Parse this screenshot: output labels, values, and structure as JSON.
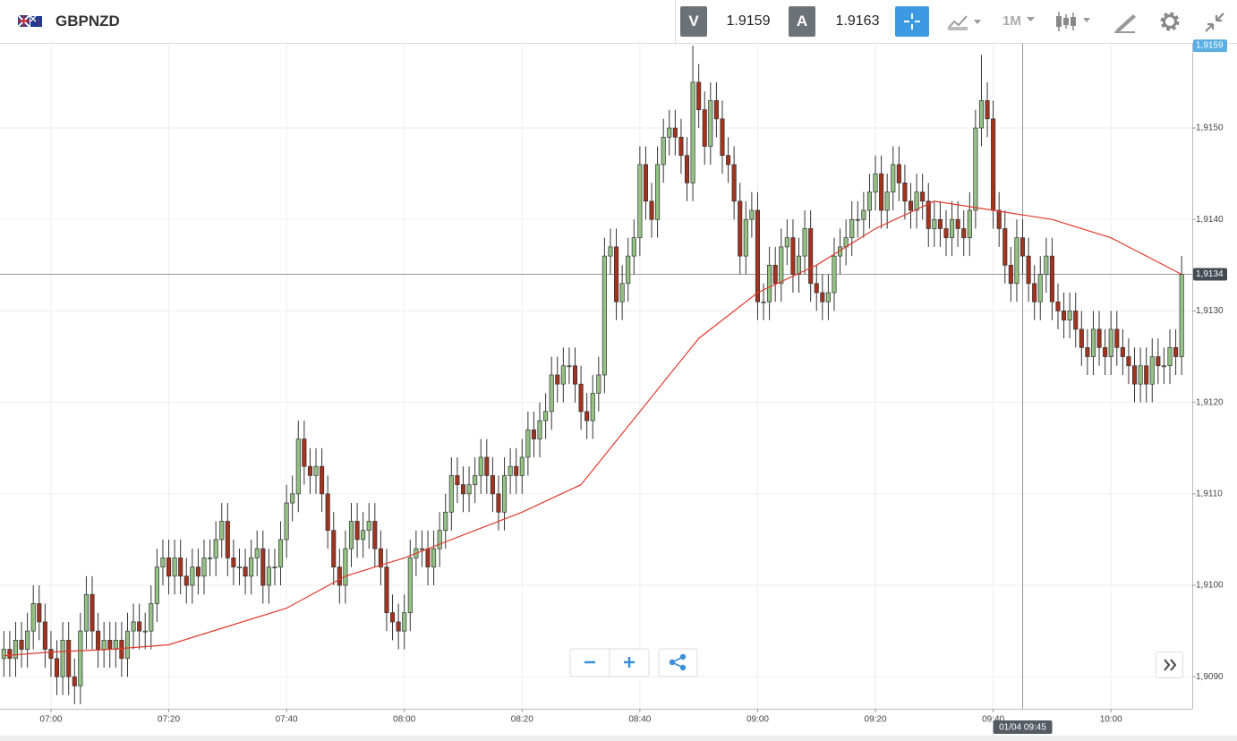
{
  "header": {
    "pair": "GBPNZD",
    "sell": {
      "label": "V",
      "price": "1.9159"
    },
    "buy": {
      "label": "A",
      "price": "1.9163"
    },
    "interval": "1M"
  },
  "chart_data": {
    "type": "candlestick",
    "x": [
      412,
      413,
      414,
      415,
      416,
      417,
      418,
      419,
      420,
      421,
      422,
      423,
      424,
      425,
      426,
      427,
      428,
      429,
      430,
      431,
      432,
      433,
      434,
      435,
      436,
      437,
      438,
      439,
      440,
      441,
      442,
      443,
      444,
      445,
      446,
      447,
      448,
      449,
      450,
      451,
      452,
      453,
      454,
      455,
      456,
      457,
      458,
      459,
      460,
      461,
      462,
      463,
      464,
      465,
      466,
      467,
      468,
      469,
      470,
      471,
      472,
      473,
      474,
      475,
      476,
      477,
      478,
      479,
      480,
      481,
      482,
      483,
      484,
      485,
      486,
      487,
      488,
      489,
      490,
      491,
      492,
      493,
      494,
      495,
      496,
      497,
      498,
      499,
      500,
      501,
      502,
      503,
      504,
      505,
      506,
      507,
      508,
      509,
      510,
      511,
      512,
      513,
      514,
      515,
      516,
      517,
      518,
      519,
      520,
      521,
      522,
      523,
      524,
      525,
      526,
      527,
      528,
      529,
      530,
      531,
      532,
      533,
      534,
      535,
      536,
      537,
      538,
      539,
      540,
      541,
      542,
      543,
      544,
      545,
      546,
      547,
      548,
      549,
      550,
      551,
      552,
      553,
      554,
      555,
      556,
      557,
      558,
      559,
      560,
      561,
      562,
      563,
      564,
      565,
      566,
      567,
      568,
      569,
      570,
      571,
      572,
      573,
      574,
      575,
      576,
      577,
      578,
      579,
      580,
      581,
      582,
      583,
      584,
      585,
      586,
      587,
      588,
      589,
      590,
      591,
      592,
      593,
      594,
      595,
      596,
      597,
      598,
      599,
      600,
      601,
      602,
      603,
      604,
      605,
      606,
      607,
      608,
      609,
      610,
      611,
      612
    ],
    "open": [
      1.9092,
      1.9093,
      1.9092,
      1.9094,
      1.9093,
      1.9095,
      1.9098,
      1.9096,
      1.9093,
      1.9092,
      1.909,
      1.9094,
      1.909,
      1.9089,
      1.9095,
      1.9099,
      1.9095,
      1.9093,
      1.9094,
      1.9093,
      1.9094,
      1.9092,
      1.9095,
      1.9096,
      1.9095,
      1.9095,
      1.9098,
      1.9102,
      1.9103,
      1.9101,
      1.9103,
      1.9101,
      1.91,
      1.9102,
      1.9101,
      1.9103,
      1.9103,
      1.9105,
      1.9107,
      1.9103,
      1.9102,
      1.9102,
      1.9101,
      1.9103,
      1.9104,
      1.91,
      1.9102,
      1.9102,
      1.9105,
      1.9109,
      1.911,
      1.9116,
      1.9113,
      1.9112,
      1.9113,
      1.911,
      1.9106,
      1.9102,
      1.91,
      1.9104,
      1.9107,
      1.9105,
      1.9106,
      1.9107,
      1.9104,
      1.9102,
      1.9097,
      1.9096,
      1.9095,
      1.9097,
      1.9103,
      1.9104,
      1.9104,
      1.9102,
      1.9104,
      1.9106,
      1.9108,
      1.9112,
      1.9111,
      1.911,
      1.9111,
      1.9112,
      1.9114,
      1.9112,
      1.911,
      1.9108,
      1.9112,
      1.9113,
      1.9112,
      1.9114,
      1.9117,
      1.9116,
      1.9118,
      1.9119,
      1.9123,
      1.9122,
      1.9124,
      1.9124,
      1.9122,
      1.9119,
      1.9118,
      1.9121,
      1.9123,
      1.9136,
      1.9137,
      1.9131,
      1.9133,
      1.9136,
      1.9138,
      1.9146,
      1.9142,
      1.914,
      1.9146,
      1.9149,
      1.915,
      1.9149,
      1.9147,
      1.9144,
      1.9155,
      1.9152,
      1.9148,
      1.9153,
      1.9151,
      1.9147,
      1.9146,
      1.9142,
      1.9136,
      1.914,
      1.9141,
      1.9131,
      1.9131,
      1.9135,
      1.9133,
      1.9137,
      1.9138,
      1.9134,
      1.9136,
      1.9139,
      1.9133,
      1.9132,
      1.9131,
      1.9132,
      1.9136,
      1.9137,
      1.9138,
      1.914,
      1.914,
      1.9141,
      1.9143,
      1.9145,
      1.9141,
      1.9143,
      1.9146,
      1.9144,
      1.9142,
      1.9141,
      1.9143,
      1.9142,
      1.9139,
      1.914,
      1.9139,
      1.9138,
      1.914,
      1.9139,
      1.9138,
      1.9141,
      1.915,
      1.9153,
      1.9151,
      1.9141,
      1.9139,
      1.9135,
      1.9133,
      1.9138,
      1.9136,
      1.9133,
      1.9131,
      1.9134,
      1.9136,
      1.9131,
      1.913,
      1.9129,
      1.913,
      1.9128,
      1.9126,
      1.9125,
      1.9128,
      1.9126,
      1.9125,
      1.9128,
      1.9126,
      1.9125,
      1.9124,
      1.9122,
      1.9124,
      1.9122,
      1.9125,
      1.9124,
      1.9124,
      1.9126,
      1.9125
    ],
    "high": [
      1.9095,
      1.9095,
      1.9096,
      1.9096,
      1.9097,
      1.91,
      1.91,
      1.9098,
      1.9095,
      1.9094,
      1.9096,
      1.9096,
      1.9092,
      1.9097,
      1.9101,
      1.9101,
      1.9097,
      1.9096,
      1.9096,
      1.9096,
      1.9096,
      1.9097,
      1.9098,
      1.9098,
      1.9097,
      1.91,
      1.9104,
      1.9105,
      1.9105,
      1.9105,
      1.9105,
      1.9103,
      1.9104,
      1.9104,
      1.9105,
      1.9105,
      1.9107,
      1.9109,
      1.9109,
      1.9105,
      1.9104,
      1.9104,
      1.9105,
      1.9106,
      1.9106,
      1.9104,
      1.9104,
      1.9107,
      1.9111,
      1.9112,
      1.9118,
      1.9118,
      1.9115,
      1.9115,
      1.9115,
      1.9112,
      1.9108,
      1.9104,
      1.9106,
      1.9109,
      1.9109,
      1.9108,
      1.9109,
      1.9109,
      1.9106,
      1.9104,
      1.9099,
      1.9098,
      1.9099,
      1.9105,
      1.9106,
      1.9106,
      1.9106,
      1.9106,
      1.9108,
      1.911,
      1.9114,
      1.9114,
      1.9113,
      1.9113,
      1.9114,
      1.9116,
      1.9116,
      1.9114,
      1.9112,
      1.9114,
      1.9115,
      1.9115,
      1.9116,
      1.9119,
      1.9119,
      1.912,
      1.9121,
      1.9125,
      1.9125,
      1.9126,
      1.9126,
      1.9126,
      1.9124,
      1.9121,
      1.9123,
      1.9125,
      1.9138,
      1.9139,
      1.9139,
      1.9135,
      1.9138,
      1.914,
      1.9148,
      1.9148,
      1.9144,
      1.9148,
      1.9151,
      1.9152,
      1.9152,
      1.9151,
      1.9149,
      1.9159,
      1.9157,
      1.9154,
      1.9155,
      1.9155,
      1.9153,
      1.9149,
      1.9148,
      1.9144,
      1.9142,
      1.9143,
      1.9143,
      1.9133,
      1.9137,
      1.9137,
      1.9139,
      1.914,
      1.914,
      1.9138,
      1.9141,
      1.9141,
      1.9135,
      1.9134,
      1.9134,
      1.9138,
      1.9139,
      1.914,
      1.9142,
      1.9142,
      1.9143,
      1.9145,
      1.9147,
      1.9147,
      1.9145,
      1.9148,
      1.9148,
      1.9146,
      1.9144,
      1.9145,
      1.9145,
      1.9144,
      1.9142,
      1.9142,
      1.9141,
      1.9142,
      1.9142,
      1.9141,
      1.9143,
      1.9152,
      1.9158,
      1.9155,
      1.9153,
      1.9143,
      1.9141,
      1.9137,
      1.914,
      1.914,
      1.9138,
      1.9135,
      1.9136,
      1.9138,
      1.9138,
      1.9133,
      1.9132,
      1.9132,
      1.9132,
      1.913,
      1.9128,
      1.913,
      1.913,
      1.9128,
      1.913,
      1.913,
      1.9128,
      1.9127,
      1.9126,
      1.9126,
      1.9126,
      1.9127,
      1.9127,
      1.9126,
      1.9128,
      1.9128,
      1.9136
    ],
    "low": [
      1.909,
      1.909,
      1.909,
      1.9091,
      1.9091,
      1.9093,
      1.9094,
      1.9091,
      1.909,
      1.9088,
      1.9088,
      1.9088,
      1.9087,
      1.9087,
      1.9093,
      1.9093,
      1.9091,
      1.9091,
      1.9091,
      1.9091,
      1.909,
      1.909,
      1.9093,
      1.9093,
      1.9093,
      1.9093,
      1.9096,
      1.91,
      1.9099,
      1.9099,
      1.9099,
      1.9098,
      1.9098,
      1.9099,
      1.9099,
      1.9101,
      1.9101,
      1.9103,
      1.9101,
      1.91,
      1.91,
      1.9099,
      1.9099,
      1.9101,
      1.9098,
      1.9098,
      1.91,
      1.91,
      1.9103,
      1.9107,
      1.9108,
      1.9111,
      1.911,
      1.911,
      1.9108,
      1.9104,
      1.91,
      1.9098,
      1.9098,
      1.9102,
      1.9103,
      1.9103,
      1.9104,
      1.9102,
      1.91,
      1.9095,
      1.9094,
      1.9093,
      1.9093,
      1.9095,
      1.9101,
      1.9102,
      1.91,
      1.91,
      1.9102,
      1.9104,
      1.9106,
      1.9109,
      1.9108,
      1.9108,
      1.9109,
      1.911,
      1.911,
      1.9108,
      1.9106,
      1.9106,
      1.911,
      1.911,
      1.911,
      1.9112,
      1.9114,
      1.9114,
      1.9116,
      1.9117,
      1.912,
      1.912,
      1.9122,
      1.912,
      1.9117,
      1.9116,
      1.9116,
      1.9119,
      1.9121,
      1.9134,
      1.9129,
      1.9129,
      1.9131,
      1.9134,
      1.9136,
      1.914,
      1.9138,
      1.9138,
      1.9144,
      1.9147,
      1.9147,
      1.9145,
      1.9142,
      1.9142,
      1.915,
      1.9146,
      1.9146,
      1.9149,
      1.9145,
      1.9144,
      1.914,
      1.9134,
      1.9134,
      1.9138,
      1.9129,
      1.9129,
      1.9129,
      1.9131,
      1.9131,
      1.9135,
      1.9132,
      1.9132,
      1.9134,
      1.9131,
      1.913,
      1.9129,
      1.9129,
      1.913,
      1.9134,
      1.9135,
      1.9136,
      1.9138,
      1.9138,
      1.9139,
      1.9141,
      1.9139,
      1.9139,
      1.9141,
      1.9142,
      1.914,
      1.9139,
      1.9139,
      1.914,
      1.9137,
      1.9137,
      1.9137,
      1.9136,
      1.9136,
      1.9137,
      1.9136,
      1.9136,
      1.9139,
      1.9148,
      1.9149,
      1.9139,
      1.9137,
      1.9133,
      1.9131,
      1.9131,
      1.9134,
      1.9131,
      1.9129,
      1.9129,
      1.9132,
      1.9129,
      1.9128,
      1.9127,
      1.9127,
      1.9126,
      1.9124,
      1.9123,
      1.9123,
      1.9124,
      1.9123,
      1.9123,
      1.9124,
      1.9123,
      1.9122,
      1.912,
      1.912,
      1.912,
      1.912,
      1.9122,
      1.9122,
      1.9122,
      1.9123,
      1.9123
    ],
    "close": [
      1.9093,
      1.9092,
      1.9094,
      1.9093,
      1.9095,
      1.9098,
      1.9096,
      1.9093,
      1.9092,
      1.909,
      1.9094,
      1.909,
      1.9089,
      1.9095,
      1.9099,
      1.9095,
      1.9093,
      1.9094,
      1.9093,
      1.9094,
      1.9092,
      1.9095,
      1.9096,
      1.9095,
      1.9095,
      1.9098,
      1.9102,
      1.9103,
      1.9101,
      1.9103,
      1.9101,
      1.91,
      1.9102,
      1.9101,
      1.9103,
      1.9103,
      1.9105,
      1.9107,
      1.9103,
      1.9102,
      1.9102,
      1.9101,
      1.9103,
      1.9104,
      1.91,
      1.9102,
      1.9102,
      1.9105,
      1.9109,
      1.911,
      1.9116,
      1.9113,
      1.9112,
      1.9113,
      1.911,
      1.9106,
      1.9102,
      1.91,
      1.9104,
      1.9107,
      1.9105,
      1.9106,
      1.9107,
      1.9104,
      1.9102,
      1.9097,
      1.9096,
      1.9095,
      1.9097,
      1.9103,
      1.9104,
      1.9104,
      1.9102,
      1.9104,
      1.9106,
      1.9108,
      1.9112,
      1.9111,
      1.911,
      1.9111,
      1.9112,
      1.9114,
      1.9112,
      1.911,
      1.9108,
      1.9112,
      1.9113,
      1.9112,
      1.9114,
      1.9117,
      1.9116,
      1.9118,
      1.9119,
      1.9123,
      1.9122,
      1.9124,
      1.9124,
      1.9122,
      1.9119,
      1.9118,
      1.9121,
      1.9123,
      1.9136,
      1.9137,
      1.9131,
      1.9133,
      1.9136,
      1.9138,
      1.9146,
      1.9142,
      1.914,
      1.9146,
      1.9149,
      1.915,
      1.9149,
      1.9147,
      1.9144,
      1.9155,
      1.9152,
      1.9148,
      1.9153,
      1.9151,
      1.9147,
      1.9146,
      1.9142,
      1.9136,
      1.914,
      1.9141,
      1.9131,
      1.9131,
      1.9135,
      1.9133,
      1.9137,
      1.9138,
      1.9134,
      1.9136,
      1.9139,
      1.9133,
      1.9132,
      1.9131,
      1.9132,
      1.9136,
      1.9137,
      1.9138,
      1.914,
      1.914,
      1.9141,
      1.9143,
      1.9145,
      1.9141,
      1.9143,
      1.9146,
      1.9144,
      1.9142,
      1.9141,
      1.9143,
      1.9142,
      1.9139,
      1.914,
      1.9139,
      1.9138,
      1.914,
      1.9139,
      1.9138,
      1.9141,
      1.915,
      1.9153,
      1.9151,
      1.9141,
      1.9139,
      1.9135,
      1.9133,
      1.9138,
      1.9136,
      1.9133,
      1.9131,
      1.9134,
      1.9136,
      1.9131,
      1.913,
      1.9129,
      1.913,
      1.9128,
      1.9126,
      1.9125,
      1.9128,
      1.9126,
      1.9125,
      1.9128,
      1.9126,
      1.9125,
      1.9124,
      1.9122,
      1.9124,
      1.9122,
      1.9125,
      1.9124,
      1.9124,
      1.9126,
      1.9125,
      1.9134
    ],
    "up_color": "#94c184",
    "down_color": "#a2331f",
    "edge_color": "#333333",
    "moving_average": {
      "color": "#e03a2f",
      "x": [
        412,
        420,
        430,
        440,
        450,
        460,
        470,
        480,
        490,
        500,
        510,
        520,
        530,
        540,
        550,
        560,
        570,
        580,
        590,
        600,
        612
      ],
      "values": [
        1.90923,
        1.90927,
        1.9093,
        1.90935,
        1.90955,
        1.90975,
        1.9101,
        1.9103,
        1.91055,
        1.9108,
        1.9111,
        1.9119,
        1.9127,
        1.9132,
        1.9135,
        1.9139,
        1.9142,
        1.9141,
        1.914,
        1.9138,
        1.9134
      ]
    },
    "xlim": [
      411.8,
      613.8
    ],
    "xticks": [
      {
        "value": 420,
        "label": "07:00"
      },
      {
        "value": 440,
        "label": "07:20"
      },
      {
        "value": 460,
        "label": "07:40"
      },
      {
        "value": 480,
        "label": "08:00"
      },
      {
        "value": 500,
        "label": "08:20"
      },
      {
        "value": 520,
        "label": "08:40"
      },
      {
        "value": 540,
        "label": "09:00"
      },
      {
        "value": 560,
        "label": "09:20"
      },
      {
        "value": 580,
        "label": "09:40"
      },
      {
        "value": 600,
        "label": "10:00"
      }
    ],
    "ylim": [
      1.90865,
      1.91593
    ],
    "yticks": [
      {
        "value": 1.909,
        "label": "1,9090"
      },
      {
        "value": 1.91,
        "label": "1,9100"
      },
      {
        "value": 1.911,
        "label": "1,9110"
      },
      {
        "value": 1.912,
        "label": "1,9120"
      },
      {
        "value": 1.913,
        "label": "1,9130"
      },
      {
        "value": 1.914,
        "label": "1,9140"
      },
      {
        "value": 1.915,
        "label": "1,9150"
      }
    ],
    "grid": true,
    "high_price": {
      "value": 1.9159,
      "label": "1,9159"
    },
    "last_price": {
      "value": 1.9134,
      "label": "1,9134"
    },
    "crosshair": {
      "x": 585,
      "label": "01/04 09:45"
    }
  }
}
